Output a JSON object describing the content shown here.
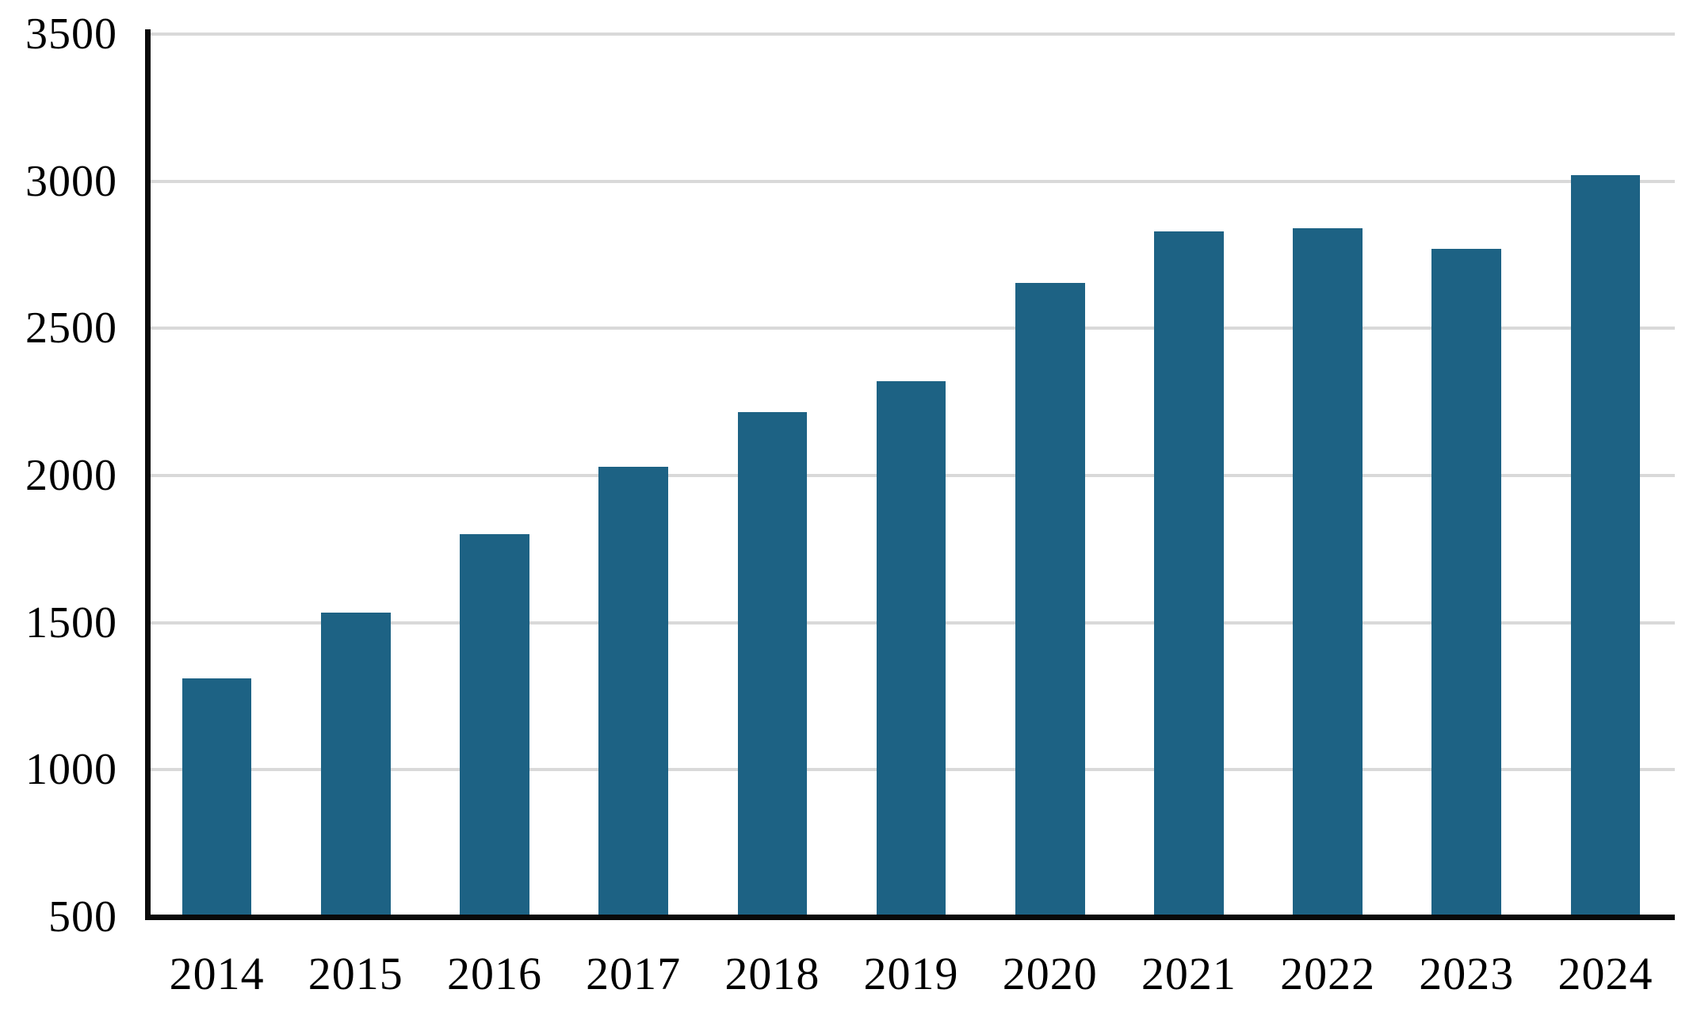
{
  "chart_data": {
    "type": "bar",
    "title": "",
    "categories": [
      "2014",
      "2015",
      "2016",
      "2017",
      "2018",
      "2019",
      "2020",
      "2021",
      "2022",
      "2023",
      "2024"
    ],
    "values": [
      1310,
      1535,
      1800,
      2030,
      2215,
      2320,
      2655,
      2830,
      2840,
      2770,
      3020
    ],
    "xlabel": "",
    "ylabel": "",
    "ylim": [
      500,
      3500
    ],
    "y_ticks": [
      3500,
      3000,
      2500,
      2000,
      1500,
      1000,
      500
    ],
    "grid": "horizontal-gridlines-on",
    "legend": "none",
    "bar_gap_ratio": 0.5,
    "colors": {
      "bar_fill": "#1d6284",
      "gridline": "#d9d9d9",
      "axis": "#0a0a0a",
      "text": "#000000",
      "background": "#ffffff"
    }
  }
}
